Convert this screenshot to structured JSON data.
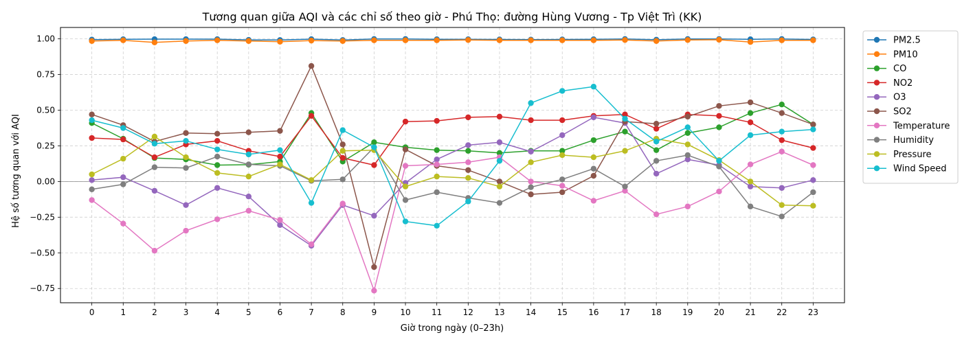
{
  "chart_data": {
    "type": "line",
    "title": "Tương quan giữa AQI và các chỉ số theo giờ - Phú Thọ: đường Hùng Vương - Tp Việt Trì (KK)",
    "xlabel": "Giờ trong ngày (0–23h)",
    "ylabel": "Hệ số tương quan với AQI",
    "x": [
      0,
      1,
      2,
      3,
      4,
      5,
      6,
      7,
      8,
      9,
      10,
      11,
      12,
      13,
      14,
      15,
      16,
      17,
      18,
      19,
      20,
      21,
      22,
      23
    ],
    "x_ticks": [
      "0",
      "1",
      "2",
      "3",
      "4",
      "5",
      "6",
      "7",
      "8",
      "9",
      "10",
      "11",
      "12",
      "13",
      "14",
      "15",
      "16",
      "17",
      "18",
      "19",
      "20",
      "21",
      "22",
      "23"
    ],
    "xlim": [
      -1.0,
      24.0
    ],
    "ylim": [
      -0.85,
      1.08
    ],
    "y_ticks": [
      1.0,
      0.75,
      0.5,
      0.25,
      0.0,
      -0.25,
      -0.5,
      -0.75
    ],
    "y_tick_labels": [
      "1.00",
      "0.75",
      "0.50",
      "0.25",
      "0.00",
      "−0.25",
      "−0.50",
      "−0.75"
    ],
    "grid": true,
    "zero_line": true,
    "legend_position": "outside-top-right",
    "series": [
      {
        "name": "PM2.5",
        "color": "#1f77b4",
        "values": [
          0.995,
          0.997,
          0.998,
          0.998,
          0.998,
          0.993,
          0.992,
          0.998,
          0.992,
          0.999,
          0.999,
          0.997,
          0.997,
          0.996,
          0.995,
          0.996,
          0.997,
          0.999,
          0.994,
          0.999,
          0.999,
          0.997,
          0.999,
          0.996
        ]
      },
      {
        "name": "PM10",
        "color": "#ff7f0e",
        "values": [
          0.985,
          0.99,
          0.975,
          0.985,
          0.99,
          0.985,
          0.98,
          0.988,
          0.985,
          0.99,
          0.99,
          0.99,
          0.992,
          0.99,
          0.99,
          0.99,
          0.99,
          0.992,
          0.985,
          0.992,
          0.994,
          0.978,
          0.99,
          0.99
        ]
      },
      {
        "name": "CO",
        "color": "#2ca02c",
        "values": [
          0.41,
          0.3,
          0.165,
          0.155,
          0.115,
          0.118,
          0.14,
          0.48,
          0.14,
          0.275,
          0.24,
          0.22,
          0.215,
          0.2,
          0.215,
          0.215,
          0.29,
          0.35,
          0.22,
          0.34,
          0.38,
          0.48,
          0.54,
          0.4
        ]
      },
      {
        "name": "NO2",
        "color": "#d62728",
        "values": [
          0.305,
          0.295,
          0.17,
          0.26,
          0.285,
          0.215,
          0.175,
          0.46,
          0.165,
          0.115,
          0.42,
          0.425,
          0.45,
          0.455,
          0.43,
          0.43,
          0.46,
          0.47,
          0.37,
          0.47,
          0.46,
          0.415,
          0.29,
          0.235
        ]
      },
      {
        "name": "O3",
        "color": "#9467bd",
        "values": [
          0.01,
          0.03,
          -0.065,
          -0.165,
          -0.045,
          -0.105,
          -0.305,
          -0.45,
          -0.165,
          -0.24,
          -0.01,
          0.155,
          0.255,
          0.275,
          0.21,
          0.325,
          0.45,
          0.41,
          0.055,
          0.155,
          0.115,
          -0.035,
          -0.045,
          0.01
        ]
      },
      {
        "name": "SO2",
        "color": "#8c564b",
        "values": [
          0.47,
          0.395,
          0.28,
          0.34,
          0.335,
          0.345,
          0.355,
          0.81,
          0.26,
          -0.6,
          0.225,
          0.11,
          0.08,
          0.0,
          -0.09,
          -0.075,
          0.04,
          0.42,
          0.405,
          0.455,
          0.53,
          0.555,
          0.48,
          0.4
        ]
      },
      {
        "name": "Temperature",
        "color": "#e377c2",
        "values": [
          -0.13,
          -0.295,
          -0.485,
          -0.345,
          -0.265,
          -0.205,
          -0.27,
          -0.44,
          -0.155,
          -0.765,
          0.11,
          0.12,
          0.135,
          0.17,
          0.0,
          -0.03,
          -0.135,
          -0.065,
          -0.23,
          -0.175,
          -0.07,
          0.12,
          0.21,
          0.115
        ]
      },
      {
        "name": "Humidity",
        "color": "#7f7f7f",
        "values": [
          -0.055,
          -0.02,
          0.1,
          0.095,
          0.175,
          0.12,
          0.11,
          0.005,
          0.015,
          0.24,
          -0.13,
          -0.075,
          -0.115,
          -0.15,
          -0.04,
          0.015,
          0.09,
          -0.035,
          0.145,
          0.185,
          0.105,
          -0.175,
          -0.245,
          -0.075
        ]
      },
      {
        "name": "Pressure",
        "color": "#bcbd22",
        "values": [
          0.05,
          0.16,
          0.315,
          0.17,
          0.06,
          0.035,
          0.12,
          0.01,
          0.215,
          0.22,
          -0.035,
          0.035,
          0.025,
          -0.035,
          0.135,
          0.185,
          0.17,
          0.215,
          0.3,
          0.26,
          0.15,
          0.0,
          -0.165,
          -0.17
        ]
      },
      {
        "name": "Wind Speed",
        "color": "#17becf",
        "values": [
          0.43,
          0.375,
          0.265,
          0.285,
          0.225,
          0.19,
          0.22,
          -0.15,
          0.36,
          0.24,
          -0.28,
          -0.31,
          -0.14,
          0.145,
          0.55,
          0.635,
          0.665,
          0.44,
          0.28,
          0.38,
          0.145,
          0.325,
          0.35,
          0.365
        ]
      }
    ]
  }
}
